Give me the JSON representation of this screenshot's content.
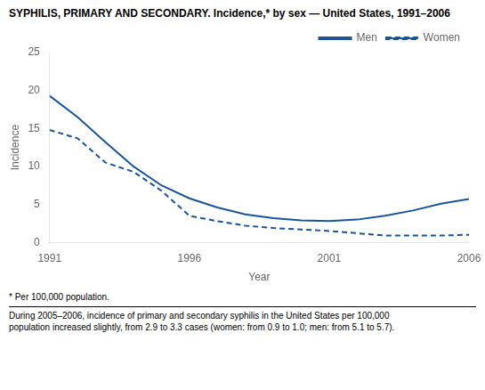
{
  "chart_data": {
    "type": "line",
    "title": "SYPHILIS, PRIMARY AND SECONDARY. Incidence,* by sex — United States, 1991–2006",
    "x_label": "Year",
    "y_label": "Incidence",
    "x": [
      1991,
      1992,
      1993,
      1994,
      1995,
      1996,
      1997,
      1998,
      1999,
      2000,
      2001,
      2002,
      2003,
      2004,
      2005,
      2006
    ],
    "series": [
      {
        "name": "Men",
        "color": "#1a5599",
        "line_style": "solid",
        "values": [
          19.3,
          16.5,
          13.2,
          10.0,
          7.5,
          5.8,
          4.6,
          3.7,
          3.2,
          2.9,
          2.8,
          3.0,
          3.5,
          4.2,
          5.1,
          5.7
        ]
      },
      {
        "name": "Women",
        "color": "#1a5599",
        "line_style": "dashed",
        "values": [
          14.8,
          13.7,
          10.5,
          9.3,
          6.8,
          3.5,
          2.8,
          2.2,
          1.9,
          1.7,
          1.5,
          1.2,
          0.9,
          0.9,
          0.9,
          1.0
        ]
      }
    ],
    "xlim": [
      1991,
      2006
    ],
    "xticks": [
      1991,
      1996,
      2001,
      2006
    ],
    "ylim": [
      0,
      25
    ],
    "yticks": [
      0,
      5,
      10,
      15,
      20,
      25
    ],
    "grid": false,
    "legend": "upper right",
    "annotations": [
      "* Per 100,000 population.",
      "During 2005–2006, incidence of primary and secondary syphilis in the United States per 100,000\npopulation increased slightly, from 2.9 to 3.3 cases (women: from 0.9 to 1.0; men: from 5.1 to 5.7)."
    ]
  }
}
